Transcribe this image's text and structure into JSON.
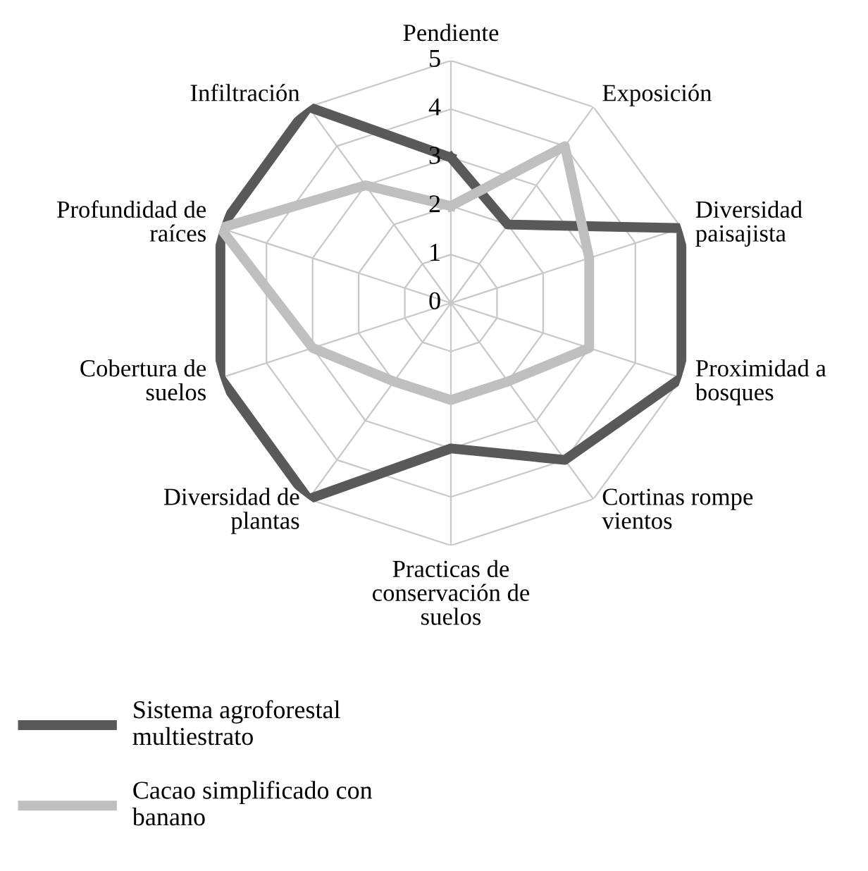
{
  "chart_data": {
    "type": "radar",
    "categories": [
      "Pendiente",
      "Exposición",
      "Diversidad\npaisajista",
      "Proximidad a\nbosques",
      "Cortinas rompe\nvientos",
      "Practicas de\nconservación de\nsuelos",
      "Diversidad de\nplantas",
      "Cobertura de\nsuelos",
      "Profundidad de\nraíces",
      "Infiltración"
    ],
    "series": [
      {
        "name": "Sistema agroforestal\nmultiestrato",
        "color": "#595959",
        "values": [
          3,
          2,
          5,
          5,
          4,
          3,
          5,
          5,
          5,
          5
        ]
      },
      {
        "name": "Cacao simplificado con\nbanano",
        "color": "#bfbfbf",
        "values": [
          2,
          4,
          3,
          3,
          2,
          2,
          2,
          3,
          5,
          3
        ]
      }
    ],
    "ylim": [
      0,
      5
    ],
    "yticks": [
      0,
      1,
      2,
      3,
      4,
      5
    ],
    "grid": true,
    "legend": "bottom left",
    "marker": "none",
    "line_style": "solid"
  }
}
